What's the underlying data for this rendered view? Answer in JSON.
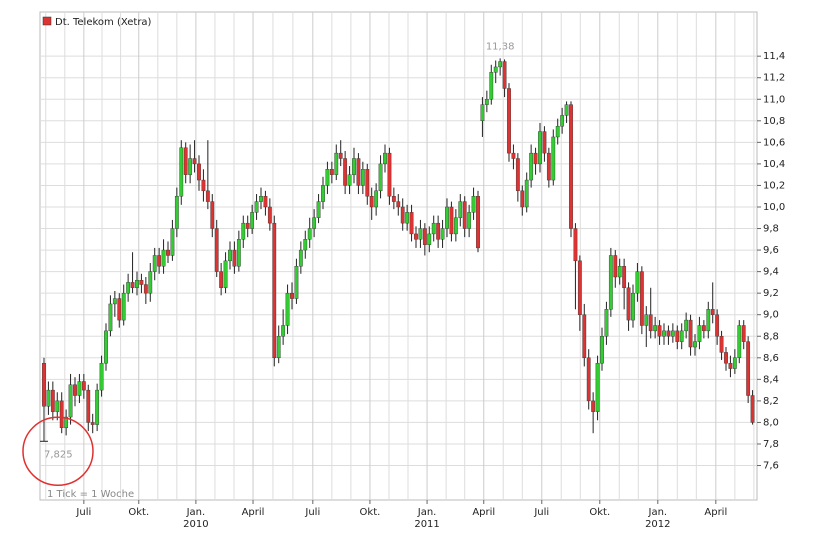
{
  "chart_data": {
    "type": "candlestick",
    "legend": "Dt. Telekom (Xetra)",
    "note": "1 Tick = 1 Woche",
    "up_color": "#33cc33",
    "down_color": "#dd3333",
    "grid": true,
    "max_label": {
      "value": 11.38,
      "label": "11,38"
    },
    "min_label": {
      "value": 7.825,
      "label": "7,825"
    },
    "xlim": [
      -0.9,
      161
    ],
    "xticks": [
      {
        "value": 9.0,
        "label": "Juli"
      },
      {
        "value": 21.4,
        "label": "Okt."
      },
      {
        "value": 34.3,
        "label": "Jan."
      },
      {
        "value": 47.2,
        "label": "April"
      },
      {
        "value": 60.7,
        "label": "Juli"
      },
      {
        "value": 73.6,
        "label": "Okt."
      },
      {
        "value": 86.5,
        "label": "Jan."
      },
      {
        "value": 99.3,
        "label": "April"
      },
      {
        "value": 112.4,
        "label": "Juli"
      },
      {
        "value": 125.5,
        "label": "Okt."
      },
      {
        "value": 138.6,
        "label": "Jan."
      },
      {
        "value": 151.7,
        "label": "April"
      }
    ],
    "year_labels": [
      {
        "value": 34.3,
        "label": "2010"
      },
      {
        "value": 86.5,
        "label": "2011"
      },
      {
        "value": 138.6,
        "label": "2012"
      }
    ],
    "x_minor_ticks": [
      0.4,
      4.7,
      13.1,
      17.3,
      25.7,
      30.0,
      38.6,
      42.9,
      51.7,
      56.2,
      65.0,
      69.3,
      77.9,
      82.2,
      90.8,
      95.0,
      103.7,
      108.0,
      116.8,
      121.1,
      129.9,
      134.2,
      143.0,
      147.3,
      156.0,
      160.3
    ],
    "ylim": [
      7.28,
      11.81
    ],
    "yticks": [
      {
        "value": 7.6,
        "label": "7,6"
      },
      {
        "value": 7.8,
        "label": "7,8"
      },
      {
        "value": 8.0,
        "label": "8,0"
      },
      {
        "value": 8.2,
        "label": "8,2"
      },
      {
        "value": 8.4,
        "label": "8,4"
      },
      {
        "value": 8.6,
        "label": "8,6"
      },
      {
        "value": 8.8,
        "label": "8,8"
      },
      {
        "value": 9.0,
        "label": "9,0"
      },
      {
        "value": 9.2,
        "label": "9,2"
      },
      {
        "value": 9.4,
        "label": "9,4"
      },
      {
        "value": 9.6,
        "label": "9,6"
      },
      {
        "value": 9.8,
        "label": "9,8"
      },
      {
        "value": 10.0,
        "label": "10,0"
      },
      {
        "value": 10.2,
        "label": "10,2"
      },
      {
        "value": 10.4,
        "label": "10,4"
      },
      {
        "value": 10.6,
        "label": "10,6"
      },
      {
        "value": 10.8,
        "label": "10,8"
      },
      {
        "value": 11.0,
        "label": "11,0"
      },
      {
        "value": 11.2,
        "label": "11,2"
      },
      {
        "value": 11.4,
        "label": "11,4"
      }
    ],
    "ohlc": [
      [
        8.55,
        8.6,
        7.825,
        8.15
      ],
      [
        8.15,
        8.38,
        8.07,
        8.3
      ],
      [
        8.3,
        8.38,
        8.02,
        8.1
      ],
      [
        8.1,
        8.28,
        8.02,
        8.2
      ],
      [
        8.2,
        8.28,
        7.9,
        7.95
      ],
      [
        7.95,
        8.12,
        7.88,
        8.05
      ],
      [
        8.05,
        8.45,
        7.98,
        8.35
      ],
      [
        8.35,
        8.42,
        8.15,
        8.25
      ],
      [
        8.25,
        8.45,
        8.18,
        8.38
      ],
      [
        8.38,
        8.45,
        8.22,
        8.3
      ],
      [
        8.3,
        8.35,
        7.92,
        8.0
      ],
      [
        8.0,
        8.08,
        7.9,
        7.98
      ],
      [
        7.98,
        8.36,
        7.92,
        8.3
      ],
      [
        8.3,
        8.62,
        8.24,
        8.55
      ],
      [
        8.55,
        8.92,
        8.48,
        8.85
      ],
      [
        8.85,
        9.18,
        8.8,
        9.1
      ],
      [
        9.1,
        9.22,
        8.98,
        9.15
      ],
      [
        9.15,
        9.2,
        8.88,
        8.95
      ],
      [
        8.95,
        9.28,
        8.9,
        9.2
      ],
      [
        9.2,
        9.38,
        9.12,
        9.3
      ],
      [
        9.3,
        9.58,
        9.2,
        9.25
      ],
      [
        9.25,
        9.4,
        9.18,
        9.32
      ],
      [
        9.32,
        9.38,
        9.2,
        9.28
      ],
      [
        9.28,
        9.35,
        9.1,
        9.2
      ],
      [
        9.2,
        9.48,
        9.12,
        9.4
      ],
      [
        9.4,
        9.62,
        9.32,
        9.55
      ],
      [
        9.55,
        9.62,
        9.38,
        9.45
      ],
      [
        9.45,
        9.7,
        9.38,
        9.6
      ],
      [
        9.6,
        9.68,
        9.48,
        9.55
      ],
      [
        9.55,
        9.88,
        9.5,
        9.8
      ],
      [
        9.8,
        10.18,
        9.72,
        10.1
      ],
      [
        10.1,
        10.62,
        10.02,
        10.55
      ],
      [
        10.55,
        10.6,
        10.22,
        10.3
      ],
      [
        10.3,
        10.58,
        10.22,
        10.45
      ],
      [
        10.45,
        10.62,
        10.32,
        10.4
      ],
      [
        10.4,
        10.48,
        10.15,
        10.25
      ],
      [
        10.25,
        10.35,
        10.05,
        10.15
      ],
      [
        10.15,
        10.62,
        9.98,
        10.05
      ],
      [
        10.05,
        10.12,
        9.72,
        9.8
      ],
      [
        9.8,
        9.88,
        9.35,
        9.4
      ],
      [
        9.4,
        9.48,
        9.18,
        9.25
      ],
      [
        9.25,
        9.58,
        9.2,
        9.5
      ],
      [
        9.5,
        9.68,
        9.42,
        9.6
      ],
      [
        9.6,
        9.68,
        9.38,
        9.45
      ],
      [
        9.45,
        9.78,
        9.4,
        9.7
      ],
      [
        9.7,
        9.92,
        9.62,
        9.85
      ],
      [
        9.85,
        9.92,
        9.72,
        9.8
      ],
      [
        9.8,
        10.02,
        9.75,
        9.95
      ],
      [
        9.95,
        10.12,
        9.88,
        10.05
      ],
      [
        10.05,
        10.18,
        9.98,
        10.1
      ],
      [
        10.1,
        10.15,
        9.92,
        10.0
      ],
      [
        10.0,
        10.08,
        9.78,
        9.85
      ],
      [
        9.85,
        9.92,
        8.52,
        8.6
      ],
      [
        8.6,
        8.9,
        8.55,
        8.8
      ],
      [
        8.8,
        9.05,
        8.72,
        8.9
      ],
      [
        8.9,
        9.28,
        8.82,
        9.2
      ],
      [
        9.2,
        9.3,
        9.05,
        9.15
      ],
      [
        9.15,
        9.52,
        9.1,
        9.45
      ],
      [
        9.45,
        9.68,
        9.38,
        9.6
      ],
      [
        9.6,
        9.78,
        9.52,
        9.7
      ],
      [
        9.7,
        9.9,
        9.62,
        9.8
      ],
      [
        9.8,
        9.98,
        9.72,
        9.9
      ],
      [
        9.9,
        10.12,
        9.85,
        10.05
      ],
      [
        10.05,
        10.28,
        9.98,
        10.2
      ],
      [
        10.2,
        10.42,
        10.12,
        10.35
      ],
      [
        10.35,
        10.42,
        10.22,
        10.3
      ],
      [
        10.3,
        10.58,
        10.25,
        10.5
      ],
      [
        10.5,
        10.62,
        10.38,
        10.45
      ],
      [
        10.45,
        10.52,
        10.12,
        10.2
      ],
      [
        10.2,
        10.38,
        10.12,
        10.3
      ],
      [
        10.3,
        10.55,
        10.22,
        10.45
      ],
      [
        10.45,
        10.5,
        10.12,
        10.2
      ],
      [
        10.2,
        10.42,
        10.12,
        10.35
      ],
      [
        10.35,
        10.4,
        10.02,
        10.1
      ],
      [
        10.1,
        10.18,
        9.88,
        10.0
      ],
      [
        10.0,
        10.22,
        9.92,
        10.15
      ],
      [
        10.15,
        10.48,
        10.08,
        10.4
      ],
      [
        10.4,
        10.58,
        10.32,
        10.5
      ],
      [
        10.5,
        10.55,
        10.02,
        10.1
      ],
      [
        10.1,
        10.18,
        9.98,
        10.05
      ],
      [
        10.05,
        10.12,
        9.92,
        10.0
      ],
      [
        10.0,
        10.08,
        9.78,
        9.85
      ],
      [
        9.85,
        10.02,
        9.78,
        9.95
      ],
      [
        9.95,
        10.02,
        9.68,
        9.75
      ],
      [
        9.75,
        9.82,
        9.62,
        9.7
      ],
      [
        9.7,
        9.88,
        9.62,
        9.8
      ],
      [
        9.8,
        9.85,
        9.55,
        9.65
      ],
      [
        9.65,
        9.82,
        9.58,
        9.75
      ],
      [
        9.75,
        9.92,
        9.68,
        9.85
      ],
      [
        9.85,
        9.92,
        9.62,
        9.7
      ],
      [
        9.7,
        9.88,
        9.62,
        9.8
      ],
      [
        9.8,
        10.08,
        9.72,
        10.0
      ],
      [
        10.0,
        10.05,
        9.68,
        9.75
      ],
      [
        9.75,
        9.98,
        9.68,
        9.9
      ],
      [
        9.9,
        10.12,
        9.82,
        10.05
      ],
      [
        10.05,
        10.1,
        9.72,
        9.8
      ],
      [
        9.8,
        10.02,
        9.72,
        9.95
      ],
      [
        9.95,
        10.18,
        9.88,
        10.1
      ],
      [
        10.1,
        10.15,
        9.58,
        9.62
      ],
      [
        10.8,
        11.02,
        10.65,
        10.95
      ],
      [
        10.95,
        11.08,
        10.88,
        11.0
      ],
      [
        11.0,
        11.32,
        10.95,
        11.25
      ],
      [
        11.25,
        11.36,
        11.15,
        11.3
      ],
      [
        11.3,
        11.38,
        11.22,
        11.35
      ],
      [
        11.35,
        11.37,
        11.02,
        11.1
      ],
      [
        11.1,
        11.15,
        10.42,
        10.5
      ],
      [
        10.5,
        10.58,
        10.35,
        10.45
      ],
      [
        10.45,
        10.5,
        10.05,
        10.15
      ],
      [
        10.15,
        10.2,
        9.92,
        10.0
      ],
      [
        10.0,
        10.32,
        9.95,
        10.25
      ],
      [
        10.25,
        10.58,
        10.18,
        10.5
      ],
      [
        10.5,
        10.55,
        10.3,
        10.4
      ],
      [
        10.4,
        10.78,
        10.32,
        10.7
      ],
      [
        10.7,
        10.75,
        10.42,
        10.5
      ],
      [
        10.5,
        10.55,
        10.18,
        10.25
      ],
      [
        10.25,
        10.72,
        10.2,
        10.65
      ],
      [
        10.65,
        10.82,
        10.58,
        10.75
      ],
      [
        10.75,
        10.92,
        10.68,
        10.85
      ],
      [
        10.85,
        10.98,
        10.78,
        10.95
      ],
      [
        10.95,
        10.98,
        9.72,
        9.8
      ],
      [
        9.8,
        9.85,
        9.05,
        9.5
      ],
      [
        9.5,
        9.55,
        8.85,
        9.0
      ],
      [
        9.0,
        9.1,
        8.52,
        8.6
      ],
      [
        8.6,
        8.68,
        8.12,
        8.2
      ],
      [
        8.2,
        8.28,
        7.9,
        8.1
      ],
      [
        8.1,
        8.62,
        8.02,
        8.55
      ],
      [
        8.55,
        8.88,
        8.48,
        8.8
      ],
      [
        8.8,
        9.12,
        8.72,
        9.05
      ],
      [
        9.05,
        9.62,
        8.98,
        9.55
      ],
      [
        9.55,
        9.6,
        9.25,
        9.35
      ],
      [
        9.35,
        9.52,
        9.28,
        9.45
      ],
      [
        9.45,
        9.52,
        9.05,
        9.25
      ],
      [
        9.25,
        9.3,
        8.85,
        8.95
      ],
      [
        8.95,
        9.28,
        8.88,
        9.2
      ],
      [
        9.2,
        9.48,
        9.12,
        9.4
      ],
      [
        9.4,
        9.45,
        8.82,
        8.9
      ],
      [
        8.9,
        9.08,
        8.7,
        9.0
      ],
      [
        9.0,
        9.25,
        8.78,
        8.85
      ],
      [
        8.85,
        8.98,
        8.78,
        8.9
      ],
      [
        8.9,
        8.95,
        8.72,
        8.8
      ],
      [
        8.8,
        8.92,
        8.72,
        8.85
      ],
      [
        8.85,
        8.9,
        8.72,
        8.8
      ],
      [
        8.8,
        8.92,
        8.74,
        8.85
      ],
      [
        8.85,
        8.9,
        8.68,
        8.75
      ],
      [
        8.75,
        8.92,
        8.68,
        8.85
      ],
      [
        8.85,
        9.02,
        8.78,
        8.95
      ],
      [
        8.95,
        9.0,
        8.62,
        8.7
      ],
      [
        8.7,
        8.82,
        8.62,
        8.75
      ],
      [
        8.75,
        8.98,
        8.68,
        8.9
      ],
      [
        8.9,
        8.95,
        8.78,
        8.85
      ],
      [
        8.85,
        9.12,
        8.78,
        9.05
      ],
      [
        9.05,
        9.3,
        8.92,
        9.0
      ],
      [
        9.0,
        9.05,
        8.72,
        8.8
      ],
      [
        8.8,
        8.85,
        8.58,
        8.65
      ],
      [
        8.65,
        8.7,
        8.48,
        8.55
      ],
      [
        8.55,
        8.62,
        8.42,
        8.5
      ],
      [
        8.5,
        8.68,
        8.45,
        8.6
      ],
      [
        8.6,
        8.95,
        8.55,
        8.9
      ],
      [
        8.9,
        8.95,
        8.68,
        8.75
      ],
      [
        8.75,
        8.8,
        8.18,
        8.25
      ],
      [
        8.25,
        8.3,
        7.98,
        8.0
      ]
    ]
  }
}
